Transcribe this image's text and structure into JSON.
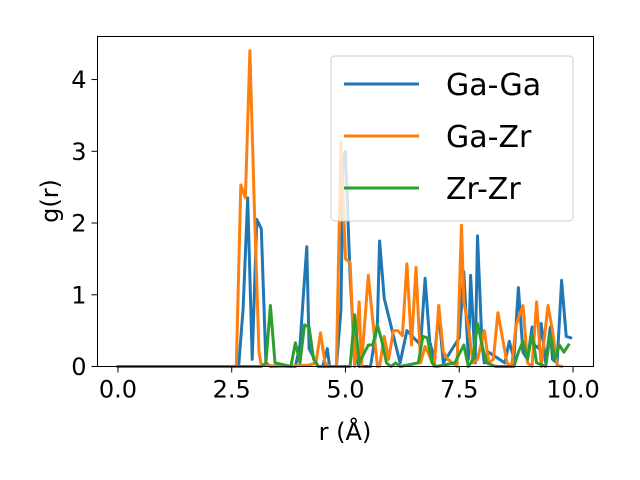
{
  "chart_data": {
    "type": "line",
    "title": "",
    "xlabel": "r (Å)",
    "ylabel": "g(r)",
    "xlim": [
      -0.45,
      10.45
    ],
    "ylim": [
      0,
      4.6
    ],
    "xticks": [
      0.0,
      2.5,
      5.0,
      7.5,
      10.0
    ],
    "xtick_labels": [
      "0.0",
      "2.5",
      "5.0",
      "7.5",
      "10.0"
    ],
    "yticks": [
      0,
      1,
      2,
      3,
      4
    ],
    "ytick_labels": [
      "0",
      "1",
      "2",
      "3",
      "4"
    ],
    "grid": false,
    "legend_position": "top-right",
    "series": [
      {
        "name": "Ga-Ga",
        "color": "#1f77b4",
        "x": [
          0.0,
          2.65,
          2.75,
          2.85,
          2.95,
          3.05,
          3.15,
          3.25,
          3.35,
          3.9,
          4.0,
          4.1,
          4.15,
          4.2,
          4.4,
          4.5,
          4.6,
          4.65,
          4.8,
          4.9,
          4.95,
          5.0,
          5.1,
          5.2,
          5.3,
          5.55,
          5.7,
          5.75,
          5.85,
          6.2,
          6.35,
          6.65,
          6.75,
          6.85,
          6.95,
          7.05,
          7.15,
          7.5,
          7.6,
          7.7,
          7.75,
          7.85,
          7.9,
          8.0,
          8.05,
          8.15,
          8.5,
          8.6,
          8.7,
          8.8,
          8.9,
          9.0,
          9.1,
          9.15,
          9.25,
          9.3,
          9.4,
          9.5,
          9.55,
          9.65,
          9.75,
          9.85,
          9.95
        ],
        "values": [
          0,
          0,
          0.8,
          2.35,
          0.1,
          2.05,
          1.92,
          0.05,
          0,
          0,
          0.3,
          1.22,
          1.67,
          0.25,
          0,
          0,
          0.25,
          0,
          0,
          0.78,
          2.9,
          3.0,
          1.25,
          0.15,
          0,
          0.0,
          0.6,
          1.75,
          0.95,
          0.05,
          0.5,
          0.3,
          1.23,
          0.35,
          0.1,
          0.75,
          0.05,
          0.4,
          1.32,
          0.1,
          1.27,
          0.05,
          1.82,
          0.3,
          0.05,
          0.2,
          0.05,
          0.35,
          0.1,
          1.1,
          0.2,
          0.1,
          0.55,
          0.3,
          0.25,
          0.6,
          0.05,
          0.55,
          0.1,
          0.05,
          1.2,
          0.42,
          0.4
        ]
      },
      {
        "name": "Ga-Zr",
        "color": "#ff7f0e",
        "x": [
          0.0,
          2.6,
          2.7,
          2.8,
          2.9,
          3.0,
          3.1,
          3.15,
          3.6,
          4.2,
          4.35,
          4.45,
          4.55,
          4.65,
          4.8,
          4.9,
          5.0,
          5.1,
          5.2,
          5.3,
          5.35,
          5.5,
          5.7,
          5.75,
          5.85,
          5.95,
          6.05,
          6.15,
          6.25,
          6.35,
          6.45,
          6.55,
          6.65,
          6.75,
          6.95,
          7.05,
          7.15,
          7.25,
          7.45,
          7.55,
          7.6,
          7.7,
          7.8,
          7.9,
          8.05,
          8.15,
          8.25,
          8.35,
          8.55,
          8.65,
          8.75,
          8.9,
          9.0,
          9.1,
          9.2,
          9.3,
          9.45,
          9.55,
          9.65,
          9.75
        ],
        "values": [
          0,
          0,
          2.53,
          2.35,
          4.4,
          2.15,
          0.2,
          0.02,
          0.0,
          0.02,
          0.05,
          0.47,
          0.05,
          0.0,
          0.0,
          3.13,
          1.5,
          1.45,
          0.0,
          0.9,
          0.0,
          1.27,
          0.0,
          0.0,
          0.42,
          0.1,
          0.5,
          0.5,
          0.43,
          1.43,
          0.3,
          1.38,
          0.05,
          0.28,
          0.0,
          0.85,
          0.2,
          0.1,
          0.0,
          1.97,
          0.9,
          0.55,
          0.05,
          0.1,
          0.5,
          0.05,
          0.1,
          0.75,
          0.05,
          0.0,
          0.58,
          0.85,
          0.05,
          0.0,
          0.9,
          0.0,
          0.85,
          0.5,
          0.02,
          0.0
        ]
      },
      {
        "name": "Zr-Zr",
        "color": "#2ca02c",
        "x": [
          0.0,
          3.15,
          3.25,
          3.35,
          3.45,
          3.8,
          3.9,
          4.0,
          4.1,
          4.2,
          4.3,
          4.4,
          4.6,
          4.9,
          5.1,
          5.2,
          5.3,
          5.5,
          5.6,
          5.7,
          5.8,
          5.9,
          6.0,
          6.1,
          6.2,
          6.6,
          6.7,
          6.8,
          6.9,
          7.0,
          7.4,
          7.6,
          7.7,
          7.8,
          7.9,
          8.0,
          8.1,
          8.3,
          8.5,
          8.7,
          8.8,
          8.9,
          9.0,
          9.1,
          9.2,
          9.4,
          9.5,
          9.6,
          9.7,
          9.8,
          9.9
        ],
        "values": [
          0,
          0,
          0.05,
          0.85,
          0.05,
          0.0,
          0.33,
          0.05,
          0.58,
          0.55,
          0.1,
          0.0,
          0.0,
          0.0,
          0.0,
          0.72,
          0.05,
          0.3,
          0.3,
          0.58,
          0.35,
          0.05,
          0.0,
          0.05,
          0.0,
          0.05,
          0.42,
          0.4,
          0.05,
          0.0,
          0.05,
          0.3,
          0.0,
          0.1,
          0.6,
          0.3,
          0.05,
          0.0,
          0.0,
          0.0,
          0.2,
          0.35,
          0.1,
          0.45,
          0.05,
          0.0,
          0.45,
          0.1,
          0.3,
          0.2,
          0.3
        ]
      }
    ]
  }
}
